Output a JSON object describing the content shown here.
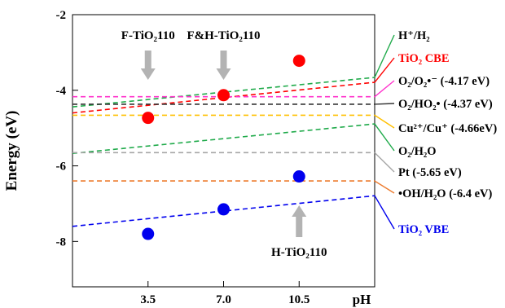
{
  "chart_data": {
    "type": "scatter",
    "xlabel": "pH",
    "ylabel": "Energy  (eV)",
    "xlim": [
      0,
      14
    ],
    "ylim": [
      -9.2,
      -2
    ],
    "grid": false,
    "x_ticks": [
      {
        "value": 3.5,
        "label": "3.5"
      },
      {
        "value": 7.0,
        "label": "7.0"
      },
      {
        "value": 10.5,
        "label": "10.5"
      }
    ],
    "y_ticks": [
      {
        "value": -2,
        "label": "-2"
      },
      {
        "value": -4,
        "label": "-4"
      },
      {
        "value": -6,
        "label": "-6"
      },
      {
        "value": -8,
        "label": "-8"
      }
    ],
    "series": [
      {
        "name": "TiO₂ CBE",
        "color": "#ff0000",
        "x": [
          3.5,
          7.0,
          10.5
        ],
        "y": [
          -4.73,
          -4.13,
          -3.22
        ]
      },
      {
        "name": "TiO₂ VBE",
        "color": "#0000ee",
        "x": [
          3.5,
          7.0,
          10.5
        ],
        "y": [
          -7.8,
          -7.15,
          -6.28
        ]
      }
    ],
    "reference_lines": [
      {
        "name": "H⁺/H₂",
        "color": "#1faa4a",
        "y0": -4.44,
        "y1": -3.66
      },
      {
        "name": "TiO₂ CBE",
        "color": "#ff0000",
        "y0": -4.6,
        "y1": -3.79
      },
      {
        "name": "O₂/O₂•⁻ (-4.17 eV)",
        "color": "#ff33cc",
        "y0": -4.17,
        "y1": -4.17
      },
      {
        "name": "O₂/HO₂• (-4.37 eV)",
        "color": "#333333",
        "y0": -4.37,
        "y1": -4.37
      },
      {
        "name": "Cu²⁺/Cu⁺ (-4.66eV)",
        "color": "#ffc000",
        "y0": -4.66,
        "y1": -4.66
      },
      {
        "name": "O₂/H₂O",
        "color": "#1faa4a",
        "y0": -5.67,
        "y1": -4.89
      },
      {
        "name": "Pt (-5.65 eV)",
        "color": "#a6a6a6",
        "y0": -5.65,
        "y1": -5.65
      },
      {
        "name": "•OH/H₂O (-6.4 eV)",
        "color": "#ed7d31",
        "y0": -6.4,
        "y1": -6.4
      },
      {
        "name": "TiO₂ VBE",
        "color": "#0000ee",
        "y0": -7.6,
        "y1": -6.79
      }
    ],
    "annotations": [
      {
        "text": "F-TiO₂110",
        "arrow": "down",
        "x": 3.5
      },
      {
        "text": "F&H-TiO₂110",
        "arrow": "down",
        "x": 7.0
      },
      {
        "text": "H-TiO₂110",
        "arrow": "up",
        "x": 10.5
      }
    ]
  }
}
